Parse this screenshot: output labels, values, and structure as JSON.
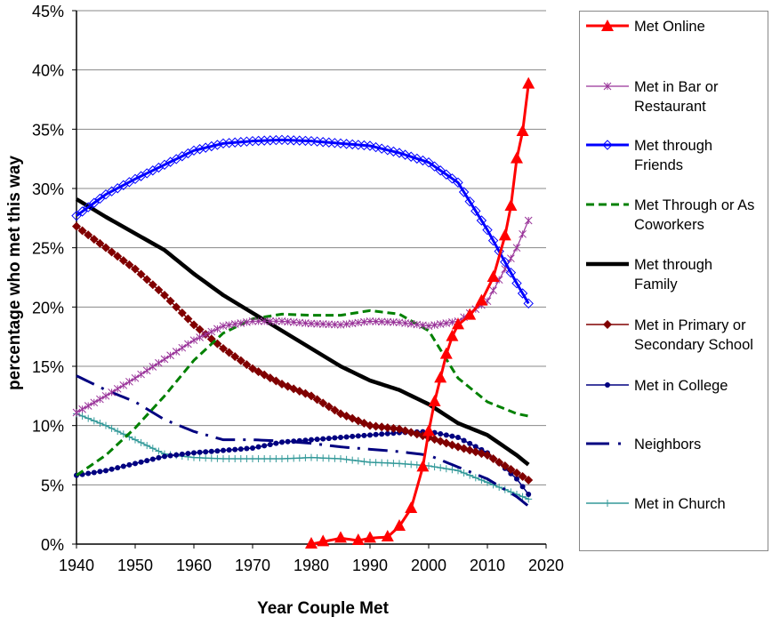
{
  "chart_data": {
    "type": "line",
    "title": "",
    "xlabel": "Year Couple Met",
    "ylabel": "percentage who met this way",
    "xlim": [
      1940,
      2020
    ],
    "ylim": [
      0,
      45
    ],
    "x_ticks": [
      "1940",
      "1950",
      "1960",
      "1970",
      "1980",
      "1990",
      "2000",
      "2010",
      "2020"
    ],
    "y_ticks": [
      "0%",
      "5%",
      "10%",
      "15%",
      "20%",
      "25%",
      "30%",
      "35%",
      "40%",
      "45%"
    ],
    "grid": "horizontal",
    "legend_position": "right",
    "x": [
      1940,
      1945,
      1950,
      1955,
      1960,
      1965,
      1970,
      1975,
      1980,
      1985,
      1990,
      1995,
      2000,
      2005,
      2010,
      2015,
      2017
    ],
    "series": [
      {
        "name": "Met Online",
        "color": "#ff0000",
        "style": "solid-triangle",
        "x": [
          1980,
          1982,
          1985,
          1988,
          1990,
          1993,
          1995,
          1997,
          1999,
          2000,
          2001,
          2002,
          2003,
          2004,
          2005,
          2007,
          2009,
          2011,
          2013,
          2014,
          2015,
          2016,
          2017
        ],
        "values": [
          0,
          0.2,
          0.5,
          0.3,
          0.5,
          0.6,
          1.5,
          3,
          6.5,
          9.5,
          12,
          14,
          16,
          17.5,
          18.5,
          19.3,
          20.5,
          22.5,
          26,
          28.5,
          32.5,
          34.8,
          38.8
        ]
      },
      {
        "name": "Met in Bar or Restaurant",
        "color": "#993399",
        "style": "thin-asterisk",
        "values": [
          11.1,
          12.5,
          14.0,
          15.6,
          17.2,
          18.4,
          18.8,
          18.8,
          18.6,
          18.5,
          18.8,
          18.7,
          18.4,
          18.8,
          20.5,
          25.0,
          27.3
        ]
      },
      {
        "name": "Met through Friends",
        "color": "#0000ff",
        "style": "solid-diamond-open",
        "values": [
          27.7,
          29.5,
          30.8,
          32.0,
          33.2,
          33.8,
          34.0,
          34.1,
          34.0,
          33.8,
          33.6,
          33.0,
          32.2,
          30.5,
          26.5,
          22.0,
          20.3
        ]
      },
      {
        "name": "Met Through or As Coworkers",
        "color": "#008000",
        "style": "dashed",
        "values": [
          5.8,
          7.5,
          9.8,
          12.5,
          15.5,
          17.8,
          19.0,
          19.4,
          19.3,
          19.3,
          19.7,
          19.4,
          18.0,
          14.0,
          12.0,
          11.0,
          10.8
        ]
      },
      {
        "name": "Met through Family",
        "color": "#000000",
        "style": "thick",
        "values": [
          29.1,
          27.6,
          26.2,
          24.8,
          22.8,
          21.0,
          19.5,
          18.0,
          16.5,
          15.0,
          13.8,
          13.0,
          11.8,
          10.2,
          9.2,
          7.5,
          6.7
        ]
      },
      {
        "name": "Met in Primary or Secondary School",
        "color": "#800000",
        "style": "thin-diamond",
        "values": [
          26.8,
          25.0,
          23.2,
          21.0,
          18.5,
          16.5,
          14.8,
          13.5,
          12.5,
          11.0,
          10.0,
          9.7,
          9.0,
          8.2,
          7.5,
          6.0,
          5.4
        ]
      },
      {
        "name": "Met in College",
        "color": "#000080",
        "style": "thin-dot",
        "values": [
          5.8,
          6.2,
          6.8,
          7.4,
          7.7,
          7.9,
          8.1,
          8.6,
          8.8,
          9.0,
          9.2,
          9.4,
          9.5,
          9.0,
          7.7,
          5.5,
          4.2
        ]
      },
      {
        "name": "Neighbors",
        "color": "#000080",
        "style": "dash-dot",
        "values": [
          14.2,
          13.0,
          12.0,
          10.5,
          9.5,
          8.8,
          8.8,
          8.7,
          8.5,
          8.2,
          8.0,
          7.8,
          7.5,
          6.5,
          5.5,
          4.0,
          3.2
        ]
      },
      {
        "name": "Met in Church",
        "color": "#339999",
        "style": "thin-plus",
        "values": [
          11.0,
          10.0,
          8.8,
          7.6,
          7.3,
          7.2,
          7.2,
          7.2,
          7.3,
          7.2,
          6.9,
          6.8,
          6.6,
          6.2,
          5.2,
          4.2,
          3.8
        ]
      }
    ]
  }
}
